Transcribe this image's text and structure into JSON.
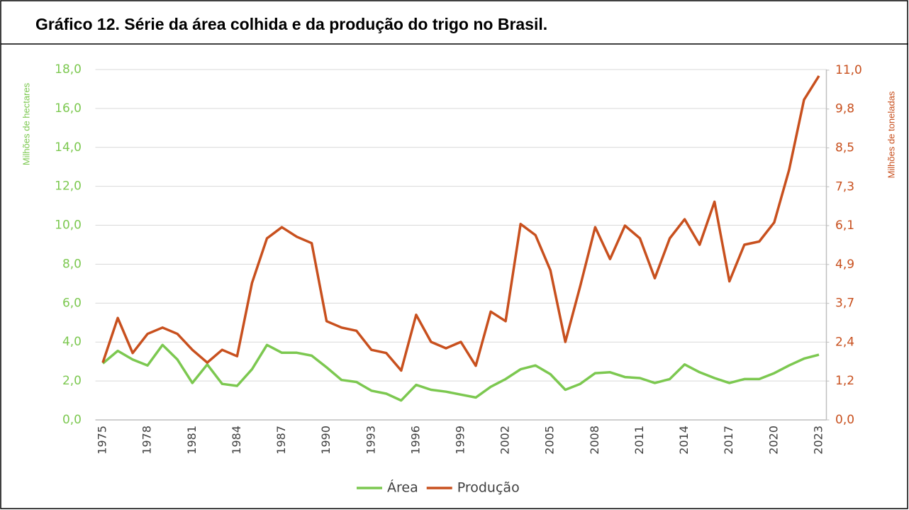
{
  "chart_data": {
    "type": "line",
    "title": "Gráfico 12. Série da área colhida e da produção do trigo no Brasil.",
    "ylabel": "Milhões de hectares",
    "y2label": "Milhões de toneladas",
    "categories": [
      "1975",
      null,
      null,
      "1978",
      null,
      null,
      "1981",
      null,
      null,
      "1984",
      null,
      null,
      "1987",
      null,
      null,
      "1990",
      null,
      null,
      "1993",
      null,
      null,
      "1996",
      null,
      null,
      "1999",
      null,
      null,
      "2002",
      null,
      null,
      "2005",
      null,
      null,
      "2008",
      null,
      null,
      "2011",
      null,
      null,
      "2014",
      null,
      null,
      "2017",
      null,
      null,
      "2020",
      null,
      null,
      "2023"
    ],
    "series": [
      {
        "name": "Área",
        "color": "#7cc850",
        "values": [
          2.9,
          3.55,
          3.1,
          2.8,
          3.85,
          3.1,
          1.9,
          2.85,
          1.85,
          1.75,
          2.6,
          3.85,
          3.45,
          3.45,
          3.3,
          2.7,
          2.05,
          1.95,
          1.5,
          1.35,
          1.0,
          1.8,
          1.55,
          1.45,
          1.3,
          1.15,
          1.7,
          2.1,
          2.6,
          2.8,
          2.35,
          1.55,
          1.85,
          2.4,
          2.45,
          2.2,
          2.15,
          1.9,
          2.1,
          2.85,
          2.45,
          2.15,
          1.9,
          2.1,
          2.1,
          2.4,
          2.8,
          3.15,
          3.35
        ]
      },
      {
        "name": "Produção",
        "color": "#c8501e",
        "axis": "y2",
        "values": [
          1.8,
          3.2,
          2.1,
          2.7,
          2.9,
          2.7,
          2.2,
          1.8,
          2.2,
          2.0,
          4.3,
          5.7,
          6.05,
          5.75,
          5.55,
          3.1,
          2.9,
          2.8,
          2.2,
          2.1,
          1.55,
          3.3,
          2.45,
          2.25,
          2.45,
          1.7,
          3.4,
          3.1,
          6.15,
          5.8,
          4.7,
          2.45,
          4.2,
          6.05,
          5.05,
          6.1,
          5.7,
          4.45,
          5.7,
          6.3,
          5.5,
          6.85,
          4.35,
          5.5,
          5.6,
          6.2,
          7.85,
          10.05,
          10.8
        ]
      }
    ],
    "ylim": [
      0,
      18
    ],
    "yticks": [
      {
        "value": 0,
        "label": "0,0"
      },
      {
        "value": 2,
        "label": "2,0"
      },
      {
        "value": 4,
        "label": "4,0"
      },
      {
        "value": 6,
        "label": "6,0"
      },
      {
        "value": 8,
        "label": "8,0"
      },
      {
        "value": 10,
        "label": "10,0"
      },
      {
        "value": 12,
        "label": "12,0"
      },
      {
        "value": 14,
        "label": "14,0"
      },
      {
        "value": 16,
        "label": "16,0"
      },
      {
        "value": 18,
        "label": "18,0"
      }
    ],
    "y2lim": [
      0,
      11
    ],
    "y2ticks": [
      {
        "value": 0,
        "label": "0,0"
      },
      {
        "value": 1.22,
        "label": "1,2"
      },
      {
        "value": 2.44,
        "label": "2,4"
      },
      {
        "value": 3.66,
        "label": "3,7"
      },
      {
        "value": 4.88,
        "label": "4,9"
      },
      {
        "value": 6.1,
        "label": "6,1"
      },
      {
        "value": 7.32,
        "label": "7,3"
      },
      {
        "value": 8.54,
        "label": "8,5"
      },
      {
        "value": 9.76,
        "label": "9,8"
      },
      {
        "value": 10.98,
        "label": "11,0"
      }
    ],
    "grid": true,
    "legend": "bottom"
  }
}
